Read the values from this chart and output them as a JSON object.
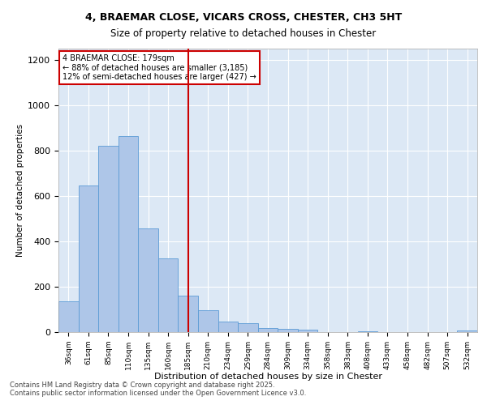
{
  "title1": "4, BRAEMAR CLOSE, VICARS CROSS, CHESTER, CH3 5HT",
  "title2": "Size of property relative to detached houses in Chester",
  "xlabel": "Distribution of detached houses by size in Chester",
  "ylabel": "Number of detached properties",
  "categories": [
    "36sqm",
    "61sqm",
    "85sqm",
    "110sqm",
    "135sqm",
    "160sqm",
    "185sqm",
    "210sqm",
    "234sqm",
    "259sqm",
    "284sqm",
    "309sqm",
    "334sqm",
    "358sqm",
    "383sqm",
    "408sqm",
    "433sqm",
    "458sqm",
    "482sqm",
    "507sqm",
    "532sqm"
  ],
  "values": [
    135,
    648,
    820,
    865,
    458,
    325,
    160,
    95,
    48,
    38,
    18,
    15,
    12,
    0,
    0,
    5,
    0,
    0,
    0,
    0,
    8
  ],
  "bar_color": "#aec6e8",
  "bar_edge_color": "#5b9bd5",
  "vline_x": 6,
  "vline_color": "#cc0000",
  "annotation_line1": "4 BRAEMAR CLOSE: 179sqm",
  "annotation_line2": "← 88% of detached houses are smaller (3,185)",
  "annotation_line3": "12% of semi-detached houses are larger (427) →",
  "annotation_box_color": "#cc0000",
  "ylim": [
    0,
    1250
  ],
  "yticks": [
    0,
    200,
    400,
    600,
    800,
    1000,
    1200
  ],
  "background_color": "#dce8f5",
  "grid_color": "#ffffff",
  "footer1": "Contains HM Land Registry data © Crown copyright and database right 2025.",
  "footer2": "Contains public sector information licensed under the Open Government Licence v3.0."
}
